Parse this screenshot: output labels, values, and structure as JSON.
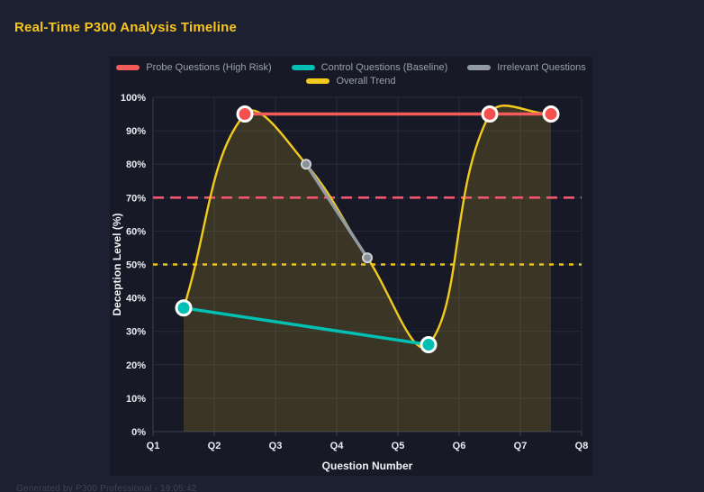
{
  "page": {
    "title": "Real-Time P300 Analysis Timeline",
    "footer": "Generated by P300 Professional - 19:05:42",
    "colors": {
      "background": "#1d2030",
      "canvas": "#171a26",
      "title": "#f7c51b",
      "grid": "#262b3d",
      "axis": "#3a3f53",
      "tick_label": "#e8ebf2",
      "legend_label": "#99a0ab"
    }
  },
  "chart_data": {
    "type": "line",
    "title": "Real-Time P300 Analysis Timeline",
    "xlabel": "Question Number",
    "ylabel": "Deception Level (%)",
    "x_ticks": [
      "Q1",
      "Q2",
      "Q3",
      "Q4",
      "Q5",
      "Q6",
      "Q7",
      "Q8"
    ],
    "y_ticks": [
      "0%",
      "10%",
      "20%",
      "30%",
      "40%",
      "50%",
      "60%",
      "70%",
      "80%",
      "90%",
      "100%"
    ],
    "ylim": [
      0,
      100
    ],
    "grid": true,
    "legend_position": "top",
    "series": [
      {
        "name": "Probe Questions (High Risk)",
        "key": "probe",
        "color": "#f45b5b",
        "point_color": "#f4504e",
        "x": [
          2.5,
          6.5,
          7.5
        ],
        "values": [
          95,
          95,
          95
        ],
        "point_size": "large"
      },
      {
        "name": "Control Questions (Baseline)",
        "key": "control",
        "color": "#00bfb3",
        "point_color": "#00bfb3",
        "x": [
          1.5,
          5.5
        ],
        "values": [
          37,
          26
        ],
        "point_size": "large"
      },
      {
        "name": "Irrelevant Questions",
        "key": "irrelevant",
        "color": "#929aa3",
        "point_color": "#8b9098",
        "x": [
          3.5,
          4.5
        ],
        "values": [
          80,
          52
        ],
        "point_size": "small"
      },
      {
        "name": "Overall Trend",
        "key": "trend",
        "color": "#f2ca1d",
        "x": [
          1.5,
          2.5,
          3.5,
          4.5,
          5.5,
          6.5,
          7.5
        ],
        "values": [
          37,
          95,
          80,
          52,
          26,
          95,
          95
        ],
        "smooth": true,
        "area_fill": "rgba(242,202,29,0.16)"
      }
    ],
    "thresholds": [
      {
        "value": 70,
        "color": "#f0566e",
        "dash": "12 7"
      },
      {
        "value": 50,
        "color": "#e7c31a",
        "dash": "5 6"
      }
    ]
  }
}
